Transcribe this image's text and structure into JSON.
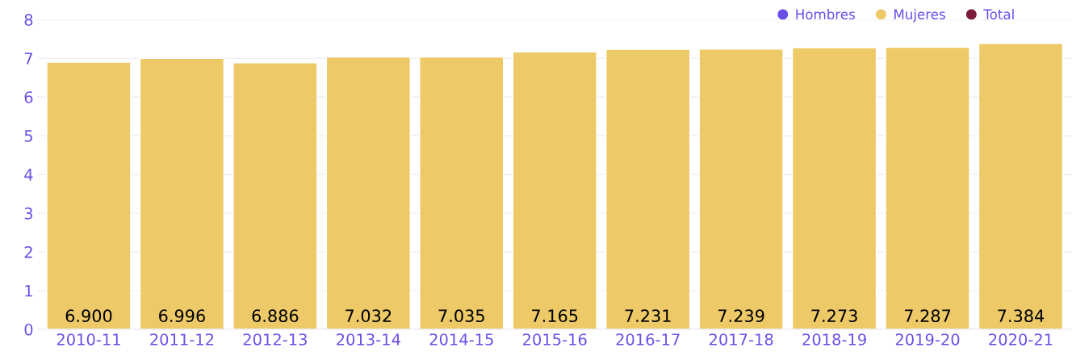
{
  "chart_data": {
    "type": "bar",
    "categories": [
      "2010-11",
      "2011-12",
      "2012-13",
      "2013-14",
      "2014-15",
      "2015-16",
      "2016-17",
      "2017-18",
      "2018-19",
      "2019-20",
      "2020-21"
    ],
    "series": [
      {
        "name": "Hombres",
        "color": "#6c4ee6",
        "values": [
          null,
          null,
          null,
          null,
          null,
          null,
          null,
          null,
          null,
          null,
          null
        ]
      },
      {
        "name": "Mujeres",
        "color": "#edc967",
        "values": [
          6.9,
          6.996,
          6.886,
          7.032,
          7.035,
          7.165,
          7.231,
          7.239,
          7.273,
          7.287,
          7.384
        ],
        "value_labels": [
          "6.900",
          "6.996",
          "6.886",
          "7.032",
          "7.035",
          "7.165",
          "7.231",
          "7.239",
          "7.273",
          "7.287",
          "7.384"
        ]
      },
      {
        "name": "Total",
        "color": "#7b1c3c",
        "values": [
          null,
          null,
          null,
          null,
          null,
          null,
          null,
          null,
          null,
          null,
          null
        ]
      }
    ],
    "ylim": [
      0,
      8
    ],
    "yticks": [
      0,
      1,
      2,
      3,
      4,
      5,
      6,
      7,
      8
    ],
    "grid": "y",
    "legend": "top right"
  }
}
